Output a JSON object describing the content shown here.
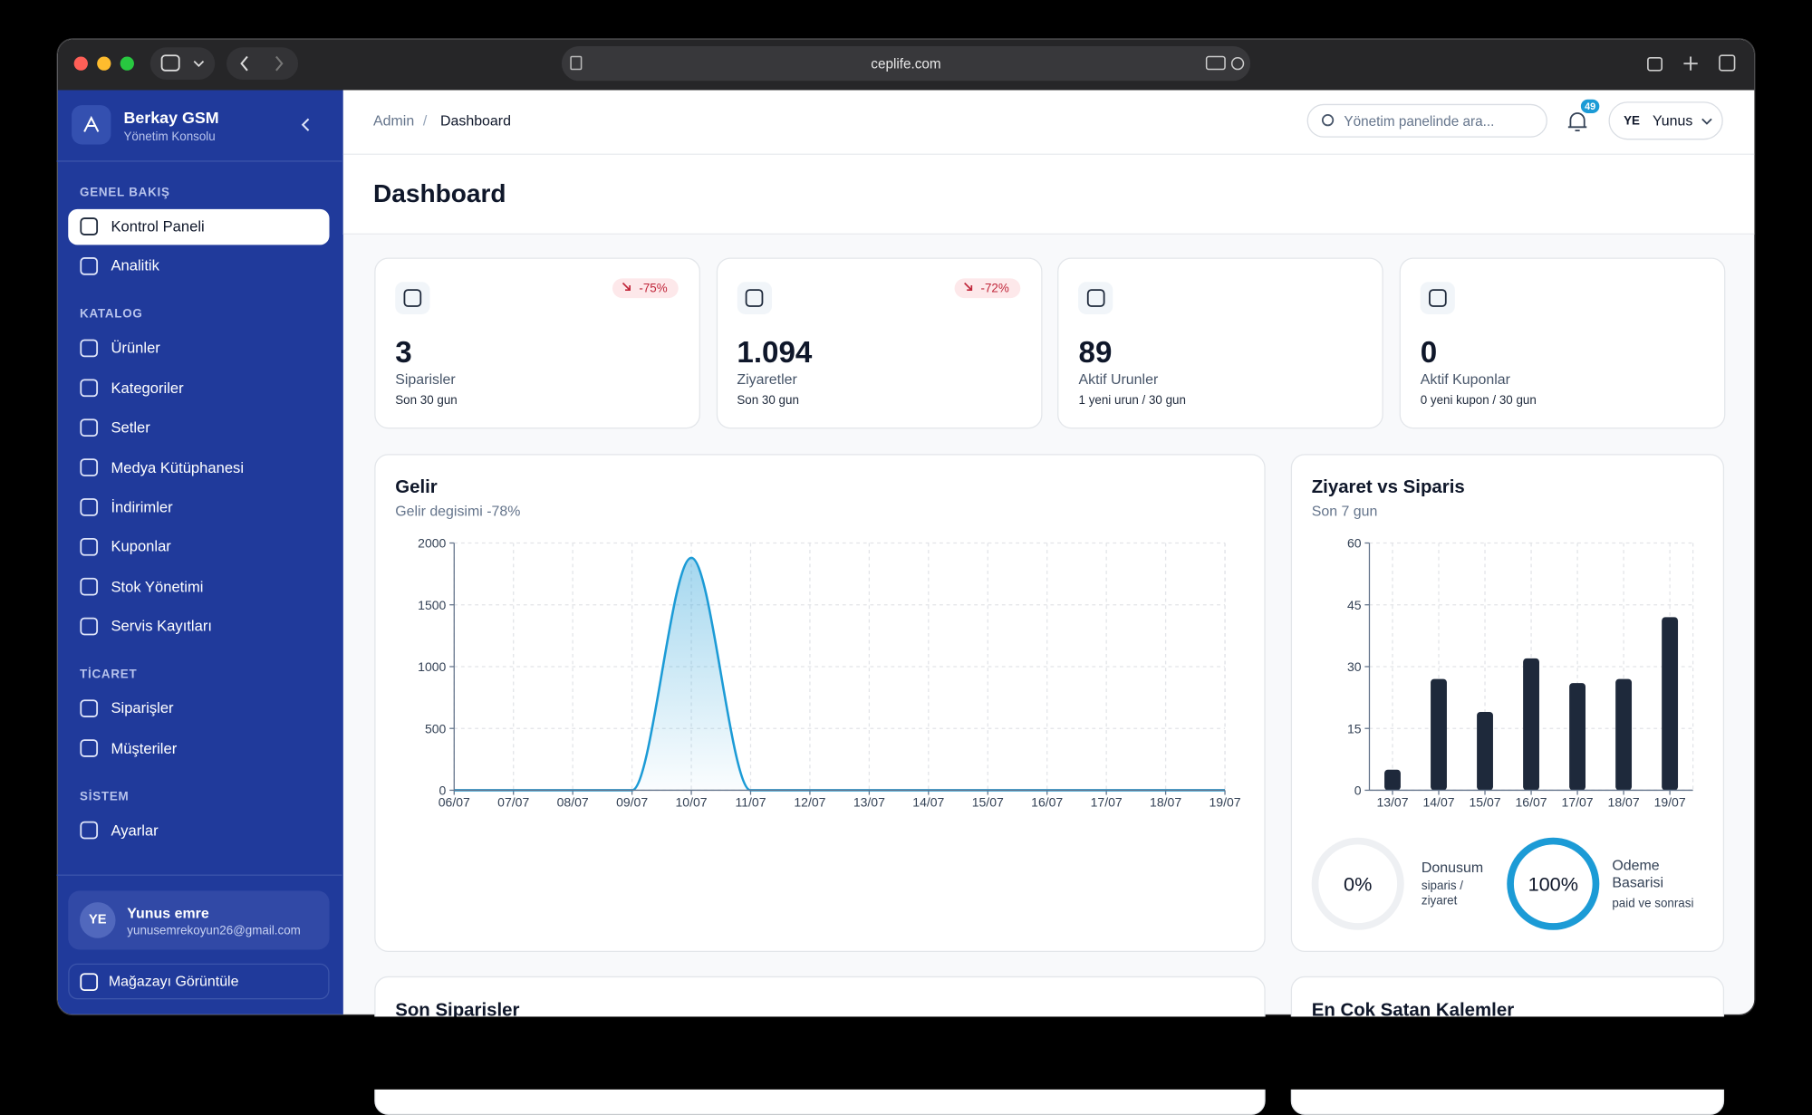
{
  "browser": {
    "url": "ceplife.com"
  },
  "sidebar": {
    "brand": "Berkay GSM",
    "tagline": "Yönetim Konsolu",
    "sections": [
      {
        "title": "GENEL BAKIŞ",
        "items": [
          "Kontrol Paneli",
          "Analitik"
        ]
      },
      {
        "title": "KATALOG",
        "items": [
          "Ürünler",
          "Kategoriler",
          "Setler",
          "Medya Kütüphanesi",
          "İndirimler",
          "Kuponlar",
          "Stok Yönetimi",
          "Servis Kayıtları"
        ]
      },
      {
        "title": "TİCARET",
        "items": [
          "Siparişler",
          "Müşteriler"
        ]
      },
      {
        "title": "SİSTEM",
        "items": [
          "Ayarlar"
        ]
      }
    ],
    "user": {
      "initials": "YE",
      "name": "Yunus emre",
      "email": "yunusemrekoyun26@gmail.com"
    },
    "store_link": "Mağazayı Görüntüle"
  },
  "header": {
    "breadcrumb": [
      "Admin",
      "Dashboard"
    ],
    "separator": "/",
    "search_placeholder": "Yönetim panelinde ara...",
    "notification_count": "49",
    "user_initials": "YE",
    "user_name": "Yunus"
  },
  "page_title": "Dashboard",
  "stats": [
    {
      "value": "3",
      "label": "Siparisler",
      "period": "Son 30 gun",
      "change": "-75%"
    },
    {
      "value": "1.094",
      "label": "Ziyaretler",
      "period": "Son 30 gun",
      "change": "-72%"
    },
    {
      "value": "89",
      "label": "Aktif Urunler",
      "period": "1 yeni urun / 30 gun"
    },
    {
      "value": "0",
      "label": "Aktif Kuponlar",
      "period": "0 yeni kupon / 30 gun"
    }
  ],
  "chart_data": [
    {
      "type": "line",
      "title": "Gelir",
      "subtitle": "Gelir degisimi -78%",
      "categories": [
        "06/07",
        "07/07",
        "08/07",
        "09/07",
        "10/07",
        "11/07",
        "12/07",
        "13/07",
        "14/07",
        "15/07",
        "16/07",
        "17/07",
        "18/07",
        "19/07"
      ],
      "values": [
        0,
        0,
        0,
        0,
        1880,
        0,
        0,
        0,
        0,
        0,
        0,
        0,
        0,
        0
      ],
      "color": "#1c9bd6",
      "ylim": [
        0,
        2000
      ],
      "yticks": [
        0,
        500,
        1000,
        1500,
        2000
      ],
      "grid": true
    },
    {
      "type": "bar",
      "title": "Ziyaret vs Siparis",
      "subtitle": "Son 7 gun",
      "categories": [
        "13/07",
        "14/07",
        "15/07",
        "16/07",
        "17/07",
        "18/07",
        "19/07"
      ],
      "values": [
        5,
        27,
        19,
        32,
        26,
        27,
        42
      ],
      "color": "#1e293b",
      "ylim": [
        0,
        60
      ],
      "yticks": [
        0,
        15,
        30,
        45,
        60
      ],
      "grid": true
    }
  ],
  "gauges": [
    {
      "value": 0,
      "value_label": "0%",
      "label": "Donusum",
      "note": "siparis / ziyaret",
      "color": "#1c9bd6"
    },
    {
      "value": 100,
      "value_label": "100%",
      "label": "Odeme Basarisi",
      "note": "paid ve sonrasi",
      "color": "#1c9bd6"
    }
  ],
  "panels": [
    "Son Siparisler",
    "En Cok Satan Kalemler"
  ]
}
